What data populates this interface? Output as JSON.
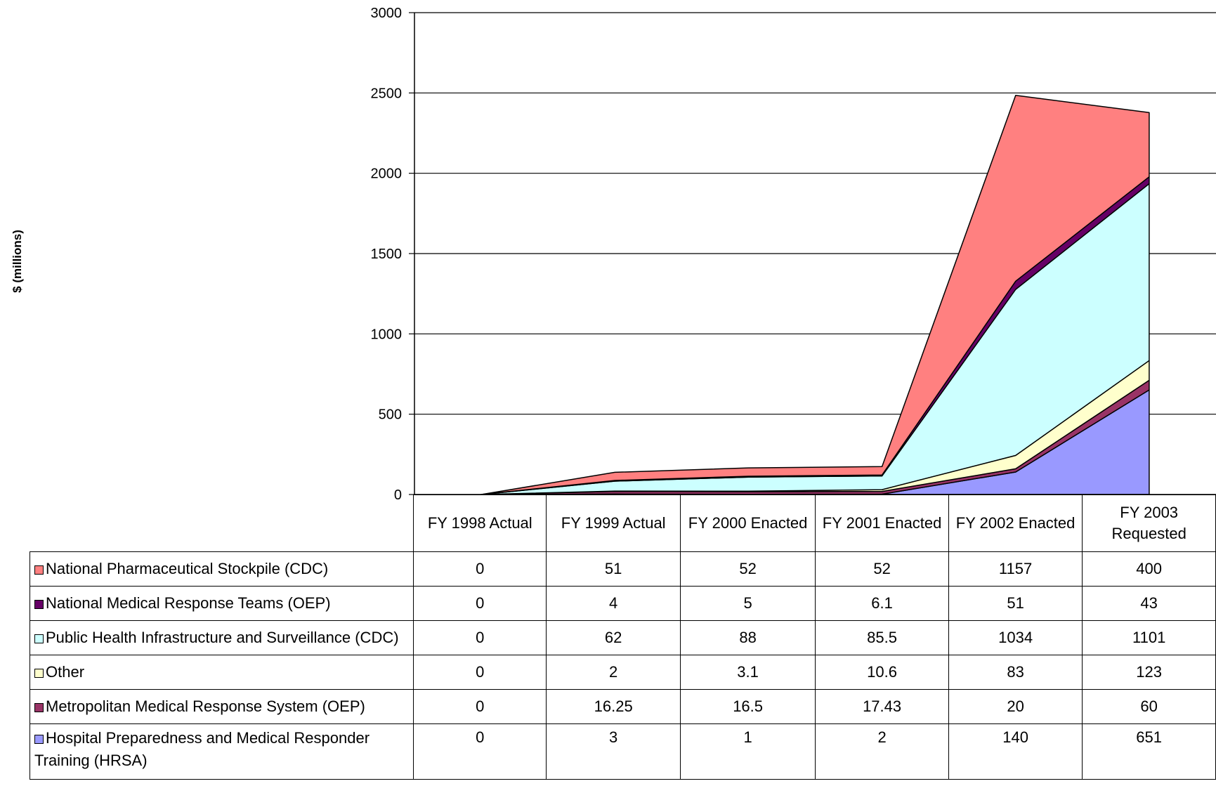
{
  "chart_data": {
    "type": "area",
    "stacked": true,
    "ylabel": "$ (millions)",
    "xlabel": "",
    "title": "",
    "ylim": [
      0,
      3000
    ],
    "yticks": [
      0,
      500,
      1000,
      1500,
      2000,
      2500,
      3000
    ],
    "grid": true,
    "categories": [
      "FY 1998 Actual",
      "FY 1999 Actual",
      "FY 2000 Enacted",
      "FY 2001 Enacted",
      "FY 2002 Enacted",
      "FY 2003 Requested"
    ],
    "series": [
      {
        "name": "National Pharmaceutical Stockpile (CDC)",
        "color": "#ff8080",
        "values": [
          0,
          51,
          52,
          52,
          1157,
          400
        ],
        "labels": [
          "0",
          "51",
          "52",
          "52",
          "1157",
          "400"
        ]
      },
      {
        "name": "National Medical Response Teams (OEP)",
        "color": "#660066",
        "values": [
          0,
          4,
          5,
          6.1,
          51,
          43
        ],
        "labels": [
          "0",
          "4",
          "5",
          "6.1",
          "51",
          "43"
        ]
      },
      {
        "name": "Public Health Infrastructure and Surveillance (CDC)",
        "color": "#ccffff",
        "values": [
          0,
          62,
          88,
          85.5,
          1034,
          1101
        ],
        "labels": [
          "0",
          "62",
          "88",
          "85.5",
          "1034",
          "1101"
        ]
      },
      {
        "name": "Other",
        "color": "#ffffcc",
        "values": [
          0,
          2,
          3.1,
          10.6,
          83,
          123
        ],
        "labels": [
          "0",
          "2",
          "3.1",
          "10.6",
          "83",
          "123"
        ]
      },
      {
        "name": "Metropolitan Medical Response System (OEP)",
        "color": "#993366",
        "values": [
          0,
          16.25,
          16.5,
          17.43,
          20,
          60
        ],
        "labels": [
          "0",
          "16.25",
          "16.5",
          "17.43",
          "20",
          "60"
        ]
      },
      {
        "name": "Hospital Preparedness and Medical Responder Training (HRSA)",
        "color": "#9999ff",
        "values": [
          0,
          3,
          1,
          2,
          140,
          651
        ],
        "labels": [
          "0",
          "3",
          "1",
          "2",
          "140",
          "651"
        ]
      }
    ]
  }
}
